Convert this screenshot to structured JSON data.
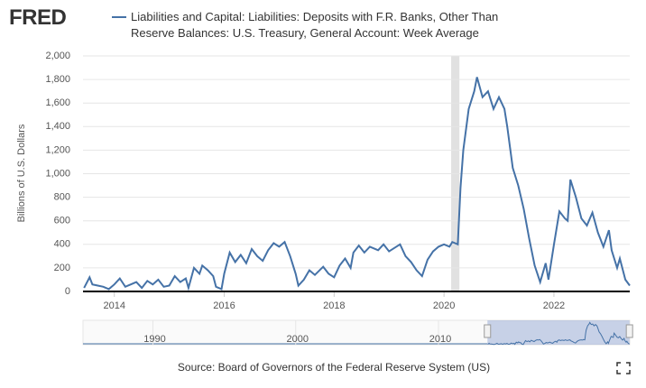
{
  "brand": "FRED",
  "source": "Source: Board of Governors of the Federal Reserve System (US)",
  "chart_data": {
    "type": "line",
    "title": "Liabilities and Capital: Liabilities: Deposits with F.R. Banks, Other Than Reserve Balances: U.S. Treasury, General Account: Week Average",
    "y_label": "Billions of U.S. Dollars",
    "xlim": [
      2013.43,
      2023.38
    ],
    "xticks": [
      2014,
      2016,
      2018,
      2020,
      2022
    ],
    "ylim": [
      0,
      2000
    ],
    "yticks": [
      0,
      200,
      400,
      600,
      800,
      {
        "value": 1000,
        "label": "1,000"
      },
      {
        "value": 1200,
        "label": "1,200"
      },
      {
        "value": 1400,
        "label": "1,400"
      },
      {
        "value": 1600,
        "label": "1,600"
      },
      {
        "value": 1800,
        "label": "1,800"
      },
      {
        "value": 2000,
        "label": "2,000"
      }
    ],
    "grid": true,
    "recession": [
      2020.13,
      2020.28
    ],
    "navigator": {
      "xlim": [
        1985.1,
        2023.4
      ],
      "xticks": [
        1990,
        2000,
        2010
      ]
    },
    "series": [
      {
        "name": "Liabilities and Capital: Liabilities: Deposits with F.R. Banks, Other Than Reserve Balances: U.S. Treasury, General Account: Week Average",
        "color": "#4572a7",
        "x": [
          2013.45,
          2013.55,
          2013.6,
          2013.7,
          2013.8,
          2013.9,
          2014.0,
          2014.1,
          2014.2,
          2014.3,
          2014.4,
          2014.5,
          2014.6,
          2014.7,
          2014.8,
          2014.9,
          2015.0,
          2015.1,
          2015.2,
          2015.3,
          2015.35,
          2015.45,
          2015.55,
          2015.6,
          2015.7,
          2015.8,
          2015.85,
          2015.95,
          2016.0,
          2016.1,
          2016.2,
          2016.3,
          2016.4,
          2016.5,
          2016.6,
          2016.7,
          2016.8,
          2016.9,
          2017.0,
          2017.1,
          2017.2,
          2017.3,
          2017.35,
          2017.45,
          2017.55,
          2017.65,
          2017.8,
          2017.9,
          2018.0,
          2018.1,
          2018.2,
          2018.3,
          2018.35,
          2018.45,
          2018.55,
          2018.65,
          2018.8,
          2018.9,
          2019.0,
          2019.1,
          2019.2,
          2019.3,
          2019.4,
          2019.5,
          2019.6,
          2019.7,
          2019.8,
          2019.9,
          2020.0,
          2020.1,
          2020.15,
          2020.25,
          2020.3,
          2020.35,
          2020.45,
          2020.55,
          2020.6,
          2020.7,
          2020.8,
          2020.9,
          2020.95,
          2021.0,
          2021.1,
          2021.15,
          2021.25,
          2021.35,
          2021.45,
          2021.55,
          2021.65,
          2021.75,
          2021.85,
          2021.9,
          2022.0,
          2022.1,
          2022.2,
          2022.25,
          2022.3,
          2022.4,
          2022.5,
          2022.6,
          2022.7,
          2022.8,
          2022.9,
          2023.0,
          2023.05,
          2023.15,
          2023.2,
          2023.3,
          2023.38
        ],
        "values": [
          30,
          120,
          60,
          50,
          40,
          20,
          60,
          110,
          40,
          60,
          80,
          30,
          90,
          60,
          100,
          40,
          50,
          130,
          80,
          110,
          30,
          200,
          150,
          220,
          180,
          130,
          40,
          20,
          150,
          330,
          250,
          310,
          240,
          360,
          300,
          260,
          350,
          410,
          380,
          420,
          300,
          150,
          50,
          100,
          180,
          140,
          210,
          150,
          120,
          220,
          280,
          200,
          330,
          390,
          330,
          380,
          350,
          400,
          340,
          370,
          400,
          300,
          250,
          180,
          130,
          270,
          340,
          380,
          400,
          380,
          420,
          400,
          880,
          1200,
          1550,
          1700,
          1820,
          1650,
          1700,
          1550,
          1600,
          1650,
          1550,
          1400,
          1050,
          900,
          700,
          450,
          220,
          80,
          240,
          100,
          400,
          680,
          620,
          600,
          950,
          800,
          620,
          560,
          670,
          500,
          380,
          520,
          350,
          200,
          280,
          100,
          50
        ]
      }
    ]
  }
}
